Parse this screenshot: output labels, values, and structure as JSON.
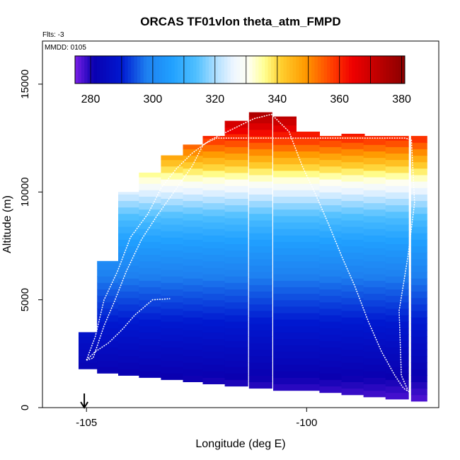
{
  "chart_data": {
    "type": "heatmap",
    "title": "ORCAS TF01vlon theta_atm_FMPD",
    "flights_note": "Flts: -3",
    "date_note": "MMDD: 0105",
    "xlabel": "Longitude (deg E)",
    "ylabel": "Altitude (m)",
    "xlim": [
      -106,
      -97
    ],
    "ylim": [
      0,
      17000
    ],
    "x_ticks": [
      -105,
      -100
    ],
    "x_tick_labels": [
      "-105",
      "-100"
    ],
    "y_ticks": [
      0,
      5000,
      10000,
      15000
    ],
    "y_tick_labels": [
      "0",
      "5000",
      "10000",
      "15000"
    ],
    "colorbar": {
      "min": 275,
      "max": 381,
      "ticks": [
        280,
        300,
        320,
        340,
        360,
        380
      ],
      "tick_labels": [
        "280",
        "300",
        "320",
        "340",
        "360",
        "380"
      ],
      "stops": [
        [
          275,
          "#7a1ee8"
        ],
        [
          281,
          "#0a00b0"
        ],
        [
          290,
          "#0018d0"
        ],
        [
          298,
          "#1e80f0"
        ],
        [
          306,
          "#20a0ff"
        ],
        [
          314,
          "#50c0ff"
        ],
        [
          321,
          "#b8e2ff"
        ],
        [
          326,
          "#eef6ff"
        ],
        [
          331,
          "#fffff0"
        ],
        [
          336,
          "#ffff90"
        ],
        [
          341,
          "#ffd030"
        ],
        [
          349,
          "#ff9a00"
        ],
        [
          358,
          "#ff3a00"
        ],
        [
          364,
          "#f00000"
        ],
        [
          372,
          "#c00000"
        ],
        [
          381,
          "#8a0000"
        ]
      ]
    },
    "theta_profile": {
      "surface_theta": 276,
      "lapse_k_per_km": 3.5,
      "tropopause_alt_m": 10400,
      "tropopause_theta": 330,
      "strat_rate_k_per_km": 14,
      "max_theta": 380
    },
    "data_columns": {
      "lon": [
        -104.92,
        -104.5,
        -104.02,
        -103.55,
        -103.05,
        -102.55,
        -102.1,
        -101.6,
        -101.05,
        -100.5,
        -99.97,
        -99.45,
        -98.95,
        -98.45,
        -97.95,
        -97.45
      ],
      "half_width_deg": [
        0.26,
        0.26,
        0.26,
        0.26,
        0.26,
        0.26,
        0.26,
        0.26,
        0.26,
        0.26,
        0.26,
        0.26,
        0.26,
        0.26,
        0.26,
        0.18
      ],
      "bottom_alt_m": [
        1800,
        1600,
        1500,
        1400,
        1300,
        1200,
        1100,
        1000,
        900,
        800,
        800,
        700,
        600,
        500,
        400,
        300
      ],
      "top_alt_m": [
        3500,
        6800,
        10000,
        10900,
        11700,
        12200,
        12600,
        13300,
        13700,
        13500,
        12800,
        12600,
        12700,
        12600,
        12600,
        12600
      ]
    },
    "flight_track": {
      "lon": [
        -105.0,
        -104.85,
        -104.6,
        -104.35,
        -104.1,
        -103.75,
        -103.4,
        -103.05,
        -102.6,
        -102.35,
        -102.05,
        -101.7,
        -101.25,
        -100.75,
        -100.3,
        -99.85,
        -99.35,
        -98.9,
        -98.45,
        -98.0,
        -97.75,
        -97.62,
        -97.55,
        -97.7,
        -97.9,
        -97.85,
        -97.7
      ],
      "alt_m": [
        2200,
        2300,
        3800,
        5000,
        6300,
        7800,
        8900,
        9900,
        11200,
        12200,
        12500,
        12500,
        12500,
        12500,
        12500,
        12500,
        12500,
        12500,
        12500,
        12500,
        12500,
        12400,
        9500,
        7000,
        4500,
        1500,
        800
      ]
    },
    "flight_track_2": {
      "lon": [
        -105.0,
        -104.8,
        -104.6,
        -104.3,
        -104.0,
        -103.6,
        -103.3,
        -102.95,
        -102.6,
        -102.2,
        -101.7,
        -101.2,
        -100.8,
        -100.4,
        -100.1,
        -99.8,
        -99.5,
        -99.2,
        -98.9,
        -98.6,
        -98.3,
        -98.0,
        -97.8,
        -97.65
      ],
      "alt_m": [
        2200,
        3300,
        5000,
        6300,
        7900,
        9000,
        10200,
        11100,
        11800,
        12400,
        12900,
        13400,
        13600,
        12800,
        11200,
        9900,
        8500,
        7000,
        5600,
        4000,
        2600,
        1500,
        900,
        700
      ]
    },
    "flight_track_3": {
      "lon": [
        -105.0,
        -104.8,
        -104.5,
        -104.2,
        -103.9,
        -103.5,
        -103.1
      ],
      "alt_m": [
        2200,
        2600,
        3000,
        3600,
        4300,
        5000,
        5050
      ]
    },
    "marker_lon": -105.05
  }
}
